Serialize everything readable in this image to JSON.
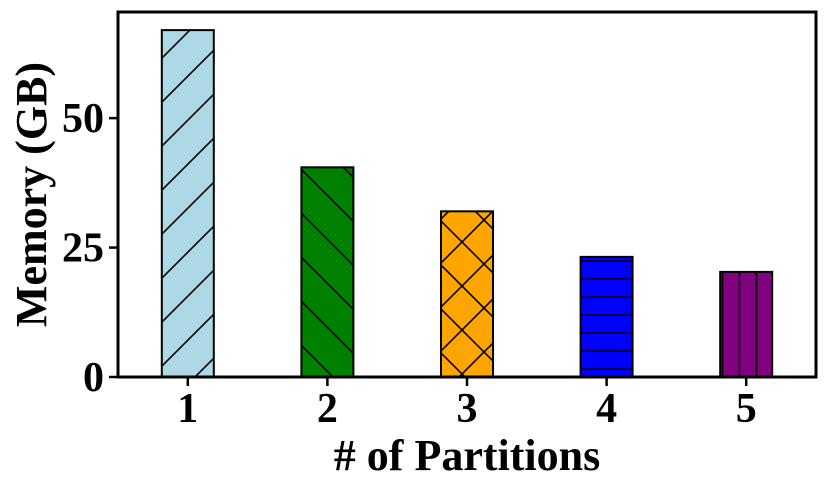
{
  "chart_data": {
    "type": "bar",
    "categories": [
      "1",
      "2",
      "3",
      "4",
      "5"
    ],
    "values": [
      67,
      40.5,
      32,
      23.2,
      20.3
    ],
    "colors": [
      "#add8e6",
      "#008000",
      "#ffa500",
      "#0000ff",
      "#800080"
    ],
    "hatches": [
      "/",
      "\\",
      "x",
      "-",
      "|"
    ],
    "xlabel": "# of Partitions",
    "ylabel": "Memory (GB)",
    "yticks": [
      0,
      25,
      50
    ],
    "ylim": [
      0,
      70.5
    ],
    "grid": false
  }
}
